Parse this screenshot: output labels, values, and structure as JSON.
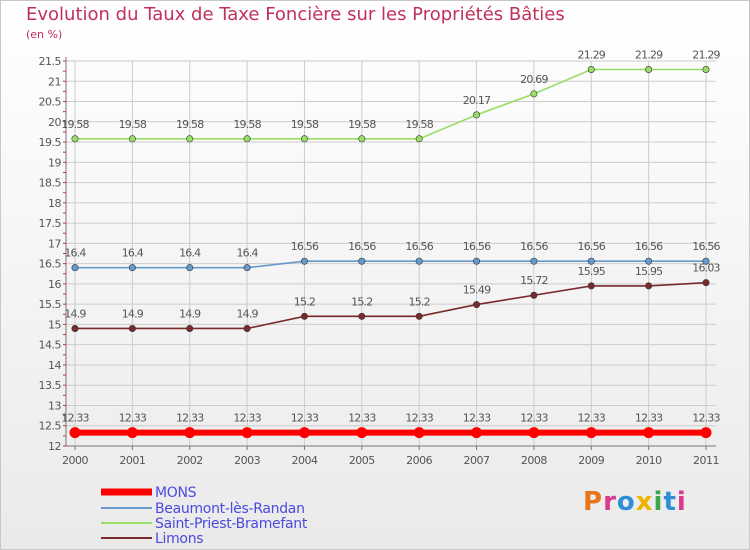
{
  "title": "Evolution du Taux de Taxe Foncière sur les Propriétés Bâties",
  "subtitle": "(en %)",
  "logo": {
    "text": "Proxiti",
    "colors": [
      "#e8751a",
      "#d93a8c",
      "#2e8fd6",
      "#f0b400",
      "#3aa84a",
      "#2e8fd6",
      "#d93a8c"
    ]
  },
  "colors": {
    "title": "#c0305a",
    "grid": "#cccccc",
    "axis": "#777777"
  },
  "chart_data": {
    "type": "line",
    "title": "Evolution du Taux de Taxe Foncière sur les Propriétés Bâties",
    "ylabel": "(en %)",
    "xlabel": "",
    "x": [
      "2000",
      "2001",
      "2002",
      "2003",
      "2004",
      "2005",
      "2006",
      "2007",
      "2008",
      "2009",
      "2010",
      "2011"
    ],
    "ylim": [
      12,
      21.5
    ],
    "yticks": [
      "12",
      "12.5",
      "13",
      "13.5",
      "14",
      "14.5",
      "15",
      "15.5",
      "16",
      "16.5",
      "17",
      "17.5",
      "18",
      "18.5",
      "19",
      "19.5",
      "20",
      "20.5",
      "21",
      "21.5"
    ],
    "grid": true,
    "legend": "bottom-left",
    "series": [
      {
        "name": "MONS",
        "color": "#ff0000",
        "values": [
          12.33,
          12.33,
          12.33,
          12.33,
          12.33,
          12.33,
          12.33,
          12.33,
          12.33,
          12.33,
          12.33,
          12.33
        ],
        "labels": [
          "12.33",
          "12.33",
          "12.33",
          "12.33",
          "12.33",
          "12.33",
          "12.33",
          "12.33",
          "12.33",
          "12.33",
          "12.33",
          "12.33"
        ]
      },
      {
        "name": "Beaumont-lès-Randan",
        "color": "#6699cc",
        "values": [
          16.4,
          16.4,
          16.4,
          16.4,
          16.56,
          16.56,
          16.56,
          16.56,
          16.56,
          16.56,
          16.56,
          16.56
        ],
        "labels": [
          "16.4",
          "16.4",
          "16.4",
          "16.4",
          "16.56",
          "16.56",
          "16.56",
          "16.56",
          "16.56",
          "16.56",
          "16.56",
          "16.56"
        ]
      },
      {
        "name": "Saint-Priest-Bramefant",
        "color": "#99dd66",
        "values": [
          19.58,
          19.58,
          19.58,
          19.58,
          19.58,
          19.58,
          19.58,
          20.17,
          20.69,
          21.29,
          21.29,
          21.29
        ],
        "labels": [
          "19.58",
          "19.58",
          "19.58",
          "19.58",
          "19.58",
          "19.58",
          "19.58",
          "20.17",
          "20.69",
          "21.29",
          "21.29",
          "21.29"
        ]
      },
      {
        "name": "Limons",
        "color": "#7a2a2a",
        "values": [
          14.9,
          14.9,
          14.9,
          14.9,
          15.2,
          15.2,
          15.2,
          15.49,
          15.72,
          15.95,
          15.95,
          16.03
        ],
        "labels": [
          "14.9",
          "14.9",
          "14.9",
          "14.9",
          "15.2",
          "15.2",
          "15.2",
          "15.49",
          "15.72",
          "15.95",
          "15.95",
          "16.03"
        ]
      }
    ]
  }
}
